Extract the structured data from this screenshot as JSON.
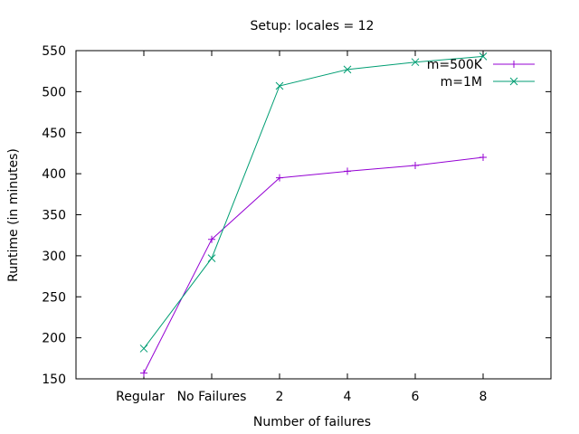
{
  "chart_data": {
    "type": "line",
    "title": "Setup: locales = 12",
    "xlabel": "Number of failures",
    "ylabel": "Runtime (in minutes)",
    "categories": [
      "Regular",
      "No Failures",
      "2",
      "4",
      "6",
      "8"
    ],
    "ylim": [
      150,
      550
    ],
    "yticks": [
      150,
      200,
      250,
      300,
      350,
      400,
      450,
      500,
      550
    ],
    "grid": false,
    "legend_position": "top-right",
    "series": [
      {
        "name": "m=500K",
        "color": "#9400d3",
        "marker": "+",
        "values": [
          157,
          320,
          395,
          403,
          410,
          420
        ]
      },
      {
        "name": "m=1M",
        "color": "#009e73",
        "marker": "x",
        "values": [
          187,
          297,
          507,
          527,
          536,
          543
        ]
      }
    ]
  }
}
